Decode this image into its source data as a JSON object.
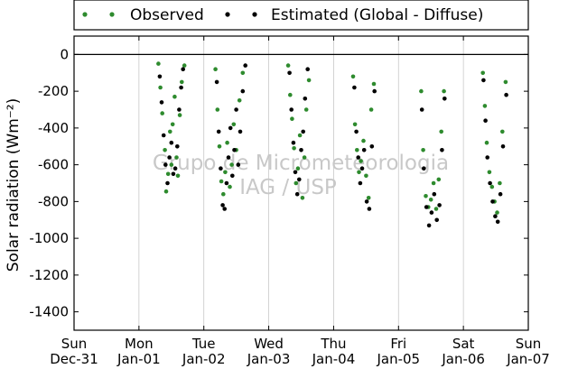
{
  "chart_data": {
    "type": "scatter",
    "ylabel": "Solar radiation (Wm⁻²)",
    "ylim": [
      -1500,
      100
    ],
    "y_ticks": [
      0,
      -200,
      -400,
      -600,
      -800,
      -1000,
      -1200,
      -1400
    ],
    "xlim": [
      0,
      7
    ],
    "x_ticks": [
      {
        "x": 0,
        "day": "Sun",
        "date": "Dec-31"
      },
      {
        "x": 1,
        "day": "Mon",
        "date": "Jan-01"
      },
      {
        "x": 2,
        "day": "Tue",
        "date": "Jan-02"
      },
      {
        "x": 3,
        "day": "Wed",
        "date": "Jan-03"
      },
      {
        "x": 4,
        "day": "Thu",
        "date": "Jan-04"
      },
      {
        "x": 5,
        "day": "Fri",
        "date": "Jan-05"
      },
      {
        "x": 6,
        "day": "Sat",
        "date": "Jan-06"
      },
      {
        "x": 7,
        "day": "Sun",
        "date": "Jan-07"
      }
    ],
    "grid": "vertical",
    "legend_position": "top",
    "watermark": [
      "Grupo de Micrometeorologia",
      "IAG / USP"
    ],
    "series": [
      {
        "name": "Observed",
        "color": "#2e8b2e",
        "marker": "circle",
        "points": [
          [
            1.3,
            -50
          ],
          [
            1.33,
            -180
          ],
          [
            1.36,
            -320
          ],
          [
            1.4,
            -520
          ],
          [
            1.42,
            -745
          ],
          [
            1.45,
            -650
          ],
          [
            1.48,
            -420
          ],
          [
            1.5,
            -600
          ],
          [
            1.52,
            -380
          ],
          [
            1.55,
            -230
          ],
          [
            1.58,
            -560
          ],
          [
            1.6,
            -660
          ],
          [
            1.63,
            -330
          ],
          [
            1.66,
            -150
          ],
          [
            1.7,
            -60
          ],
          [
            2.18,
            -80
          ],
          [
            2.21,
            -300
          ],
          [
            2.24,
            -500
          ],
          [
            2.27,
            -690
          ],
          [
            2.3,
            -760
          ],
          [
            2.33,
            -640
          ],
          [
            2.36,
            -480
          ],
          [
            2.4,
            -720
          ],
          [
            2.43,
            -600
          ],
          [
            2.46,
            -380
          ],
          [
            2.5,
            -520
          ],
          [
            2.55,
            -250
          ],
          [
            2.6,
            -100
          ],
          [
            3.3,
            -60
          ],
          [
            3.33,
            -220
          ],
          [
            3.36,
            -350
          ],
          [
            3.39,
            -510
          ],
          [
            3.42,
            -700
          ],
          [
            3.45,
            -620
          ],
          [
            3.48,
            -440
          ],
          [
            3.52,
            -780
          ],
          [
            3.55,
            -560
          ],
          [
            3.58,
            -300
          ],
          [
            3.62,
            -140
          ],
          [
            4.3,
            -120
          ],
          [
            4.33,
            -380
          ],
          [
            4.36,
            -520
          ],
          [
            4.39,
            -640
          ],
          [
            4.42,
            -580
          ],
          [
            4.46,
            -470
          ],
          [
            4.5,
            -660
          ],
          [
            4.54,
            -780
          ],
          [
            4.58,
            -300
          ],
          [
            4.62,
            -160
          ],
          [
            5.35,
            -200
          ],
          [
            5.38,
            -520
          ],
          [
            5.42,
            -770
          ],
          [
            5.46,
            -830
          ],
          [
            5.5,
            -790
          ],
          [
            5.54,
            -700
          ],
          [
            5.58,
            -840
          ],
          [
            5.62,
            -680
          ],
          [
            5.66,
            -420
          ],
          [
            5.7,
            -200
          ],
          [
            6.3,
            -100
          ],
          [
            6.33,
            -280
          ],
          [
            6.36,
            -480
          ],
          [
            6.4,
            -640
          ],
          [
            6.44,
            -720
          ],
          [
            6.48,
            -800
          ],
          [
            6.52,
            -860
          ],
          [
            6.56,
            -700
          ],
          [
            6.6,
            -420
          ],
          [
            6.65,
            -150
          ]
        ]
      },
      {
        "name": "Estimated (Global - Diffuse)",
        "color": "#000000",
        "marker": "circle",
        "points": [
          [
            1.32,
            -120
          ],
          [
            1.35,
            -260
          ],
          [
            1.38,
            -440
          ],
          [
            1.41,
            -600
          ],
          [
            1.44,
            -700
          ],
          [
            1.47,
            -560
          ],
          [
            1.5,
            -480
          ],
          [
            1.53,
            -650
          ],
          [
            1.56,
            -620
          ],
          [
            1.59,
            -500
          ],
          [
            1.62,
            -300
          ],
          [
            1.65,
            -180
          ],
          [
            1.68,
            -80
          ],
          [
            2.2,
            -150
          ],
          [
            2.23,
            -420
          ],
          [
            2.26,
            -620
          ],
          [
            2.29,
            -820
          ],
          [
            2.32,
            -840
          ],
          [
            2.35,
            -700
          ],
          [
            2.38,
            -560
          ],
          [
            2.41,
            -400
          ],
          [
            2.44,
            -660
          ],
          [
            2.47,
            -520
          ],
          [
            2.5,
            -300
          ],
          [
            2.53,
            -600
          ],
          [
            2.56,
            -420
          ],
          [
            2.6,
            -200
          ],
          [
            2.64,
            -60
          ],
          [
            3.32,
            -100
          ],
          [
            3.35,
            -300
          ],
          [
            3.38,
            -480
          ],
          [
            3.41,
            -640
          ],
          [
            3.44,
            -760
          ],
          [
            3.47,
            -680
          ],
          [
            3.5,
            -520
          ],
          [
            3.53,
            -420
          ],
          [
            3.56,
            -240
          ],
          [
            3.6,
            -80
          ],
          [
            4.32,
            -180
          ],
          [
            4.35,
            -420
          ],
          [
            4.38,
            -560
          ],
          [
            4.41,
            -700
          ],
          [
            4.44,
            -620
          ],
          [
            4.47,
            -520
          ],
          [
            4.51,
            -800
          ],
          [
            4.55,
            -840
          ],
          [
            4.59,
            -500
          ],
          [
            4.63,
            -200
          ],
          [
            5.36,
            -300
          ],
          [
            5.39,
            -620
          ],
          [
            5.43,
            -830
          ],
          [
            5.47,
            -930
          ],
          [
            5.51,
            -860
          ],
          [
            5.55,
            -760
          ],
          [
            5.59,
            -900
          ],
          [
            5.63,
            -820
          ],
          [
            5.67,
            -520
          ],
          [
            5.71,
            -240
          ],
          [
            6.31,
            -140
          ],
          [
            6.34,
            -360
          ],
          [
            6.37,
            -560
          ],
          [
            6.41,
            -700
          ],
          [
            6.45,
            -800
          ],
          [
            6.49,
            -880
          ],
          [
            6.53,
            -910
          ],
          [
            6.57,
            -760
          ],
          [
            6.61,
            -500
          ],
          [
            6.66,
            -220
          ]
        ]
      }
    ]
  }
}
